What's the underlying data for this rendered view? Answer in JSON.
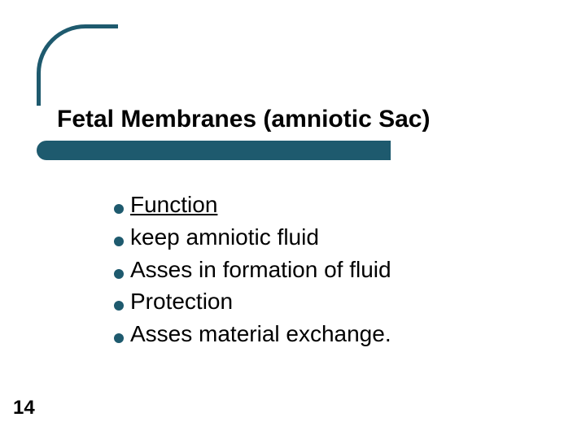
{
  "slide": {
    "title": "Fetal Membranes (amniotic Sac)",
    "title_fontsize": 30,
    "title_color": "#000000",
    "accent_color": "#1e5a6e",
    "underline_bar_width": 435,
    "corner_arc_color": "#1e5a6e",
    "background_color": "#ffffff",
    "page_number": "14",
    "page_number_fontsize": 24,
    "bullets": [
      {
        "text": "Function",
        "underlined": true
      },
      {
        "text": "keep amniotic fluid",
        "underlined": false
      },
      {
        "text": "Asses in formation of fluid",
        "underlined": false
      },
      {
        "text": "Protection",
        "underlined": false
      },
      {
        "text": "Asses material exchange.",
        "underlined": false
      }
    ],
    "bullet_fontsize": 28,
    "bullet_dot_size": 12,
    "bullet_dot_color": "#1e5a6e",
    "bullet_text_color": "#000000"
  }
}
